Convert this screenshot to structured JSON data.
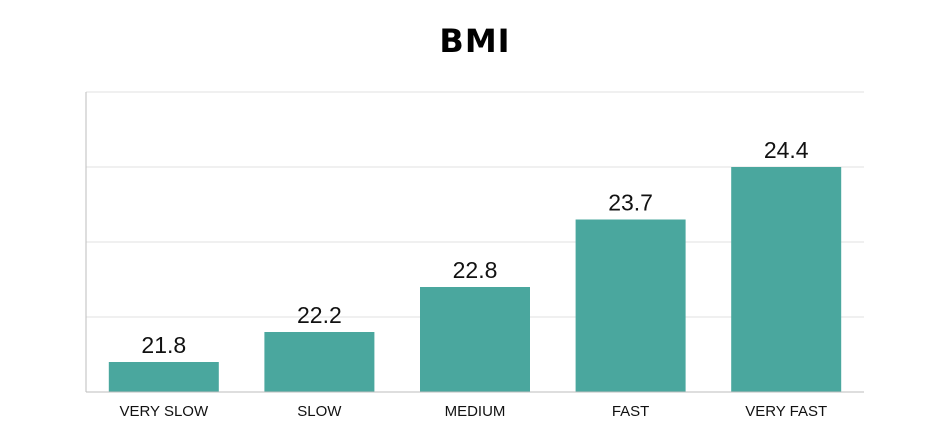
{
  "chart_data": {
    "type": "bar",
    "title": "BMI",
    "xlabel": "",
    "ylabel": "",
    "categories": [
      "VERY SLOW",
      "SLOW",
      "MEDIUM",
      "FAST",
      "VERY FAST"
    ],
    "values": [
      21.8,
      22.2,
      22.8,
      23.7,
      24.4
    ],
    "data_labels": [
      "21.8",
      "22.2",
      "22.8",
      "23.7",
      "24.4"
    ],
    "ylim": [
      21.4,
      25.4
    ],
    "grid": true,
    "bar_color": "#4aa79e",
    "grid_color": "#e2e2e2",
    "axis_color": "#bdbdbd"
  }
}
